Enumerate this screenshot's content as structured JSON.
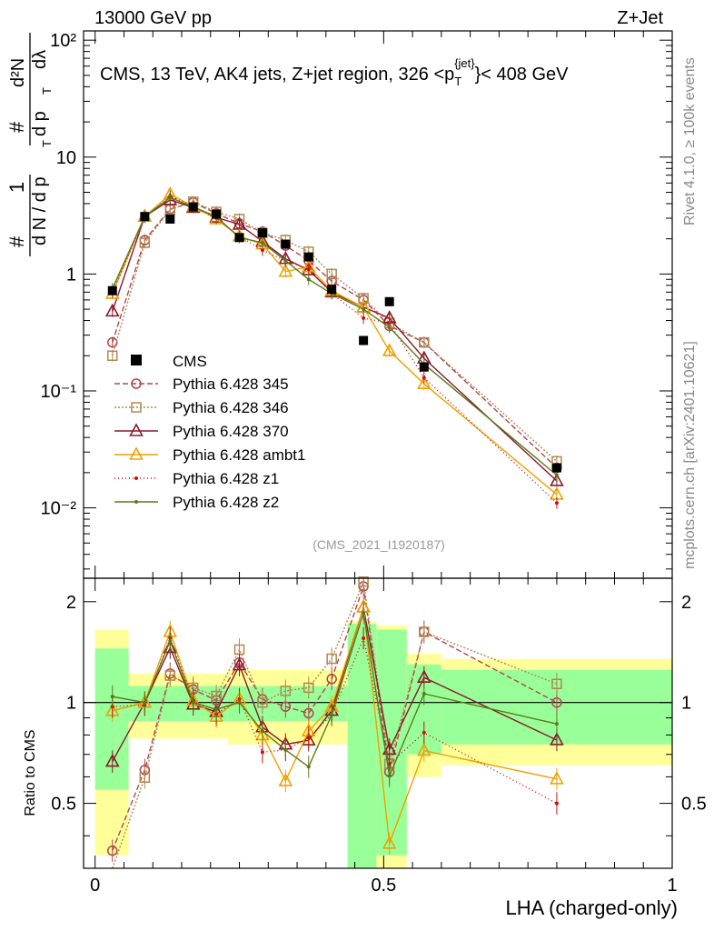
{
  "header": {
    "energy": "13000 GeV pp",
    "process": "Z+Jet"
  },
  "side_texts": {
    "rivet": "Rivet 4.1.0, ≥ 100k events",
    "mcplots": "mcplots.cern.ch [arXiv:2401.10621]"
  },
  "chart_data": {
    "type": "line",
    "title": "CMS, 13 TeV, AK4 jets, Z+jet region, 326 <p_T^{jet}< 408 GeV",
    "title_parts": {
      "main": "CMS, 13 TeV, AK4 jets, Z+jet region, 326 <p",
      "sub": "T",
      "sup": "{jet}",
      "tail": "}< 408 GeV"
    },
    "analysis_id": "(CMS_2021_I1920187)",
    "ylabel_top": "1/N dN/dp_T d^2N/dp_T dλ",
    "ylabel_top_parts": {
      "hash": "#",
      "one": "1",
      "dn": "d N / d p",
      "t": "T",
      "d2n": "d²N",
      "dpt": "d p",
      "dl": "dλ"
    },
    "ylabel_bottom": "Ratio to CMS",
    "xlabel": "LHA (charged-only)",
    "xlim": [
      -0.02,
      1.0
    ],
    "ylim_top": [
      0.0025,
      120
    ],
    "ylim_bottom": [
      0.32,
      2.35
    ],
    "x_ticks": [
      "0",
      "0.5",
      "1"
    ],
    "top_ticks": [
      "10⁻²",
      "10⁻¹",
      "1",
      "10",
      "10²"
    ],
    "bottom_ticks": [
      "0.5",
      "1",
      "2"
    ],
    "x": [
      0.03,
      0.086,
      0.13,
      0.17,
      0.21,
      0.25,
      0.29,
      0.33,
      0.37,
      0.41,
      0.465,
      0.51,
      0.57,
      0.8
    ],
    "data": {
      "name": "CMS",
      "values": [
        0.72,
        3.1,
        2.95,
        3.75,
        3.25,
        2.05,
        2.25,
        1.8,
        1.4,
        0.74,
        0.27,
        0.58,
        0.16,
        0.022
      ],
      "color": "#000000"
    },
    "band_inner": [
      0.45,
      0.12,
      0.12,
      0.12,
      0.12,
      0.12,
      0.12,
      0.12,
      0.12,
      0.12,
      0.72,
      0.65,
      0.3,
      0.25
    ],
    "band_outer": [
      0.65,
      0.22,
      0.22,
      0.22,
      0.22,
      0.25,
      0.25,
      0.25,
      0.25,
      0.25,
      0.75,
      0.7,
      0.4,
      0.35
    ],
    "series": [
      {
        "name": "Pythia 6.428 345",
        "color": "#b0454f",
        "dash": "6,3",
        "marker": "circle",
        "values": [
          0.26,
          1.95,
          3.6,
          4.1,
          3.3,
          2.7,
          2.3,
          1.75,
          1.3,
          0.87,
          0.6,
          0.36,
          0.26,
          0.022
        ]
      },
      {
        "name": "Pythia 6.428 346",
        "color": "#b08850",
        "dash": "2,2",
        "marker": "square",
        "values": [
          0.2,
          1.85,
          3.55,
          4.15,
          3.4,
          2.95,
          2.25,
          1.95,
          1.55,
          1.0,
          0.62,
          0.38,
          0.26,
          0.025
        ]
      },
      {
        "name": "Pythia 6.428 370",
        "color": "#8b1a2b",
        "dash": "",
        "marker": "triangle",
        "values": [
          0.48,
          3.1,
          4.3,
          3.7,
          3.05,
          2.65,
          1.9,
          1.35,
          1.08,
          0.7,
          0.52,
          0.42,
          0.19,
          0.017
        ]
      },
      {
        "name": "Pythia 6.428 ambt1",
        "color": "#f0a000",
        "dash": "",
        "marker": "triangle",
        "values": [
          0.68,
          3.1,
          4.8,
          3.8,
          2.95,
          2.1,
          1.8,
          1.05,
          1.15,
          0.72,
          0.52,
          0.22,
          0.115,
          0.013
        ]
      },
      {
        "name": "Pythia 6.428 z1",
        "color": "#cc1010",
        "dash": "1,3",
        "marker": "dot",
        "values": [
          0.7,
          3.05,
          4.6,
          3.8,
          3.0,
          2.1,
          1.6,
          1.3,
          1.1,
          0.68,
          0.42,
          0.38,
          0.13,
          0.011
        ]
      },
      {
        "name": "Pythia 6.428 z2",
        "color": "#5a7a1a",
        "dash": "",
        "marker": "dot",
        "values": [
          0.75,
          3.1,
          4.5,
          3.75,
          3.1,
          2.05,
          1.85,
          1.3,
          0.9,
          0.68,
          0.5,
          0.35,
          0.17,
          0.019
        ]
      }
    ]
  }
}
